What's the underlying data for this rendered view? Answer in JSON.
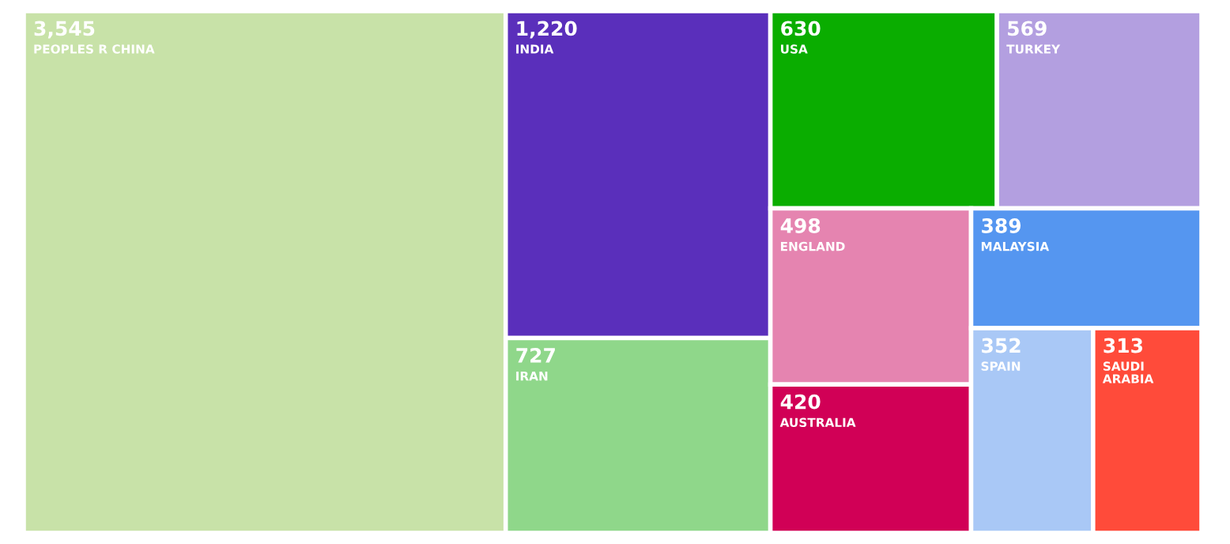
{
  "chart_data": {
    "type": "other",
    "categories": [
      "PEOPLES R CHINA",
      "INDIA",
      "IRAN",
      "USA",
      "TURKEY",
      "ENGLAND",
      "AUSTRALIA",
      "MALAYSIA",
      "SPAIN",
      "SAUDI ARABIA"
    ],
    "values": [
      3545,
      1220,
      727,
      630,
      569,
      498,
      420,
      389,
      352,
      313
    ],
    "value_labels": [
      "3,545",
      "1,220",
      "727",
      "630",
      "569",
      "498",
      "420",
      "389",
      "352",
      "313"
    ],
    "colors": [
      "#c8e2a8",
      "#5a2fbb",
      "#8fd78a",
      "#0aad00",
      "#b39fe0",
      "#e584b0",
      "#d10056",
      "#5596f0",
      "#a9c8f6",
      "#ff4b3a"
    ]
  }
}
